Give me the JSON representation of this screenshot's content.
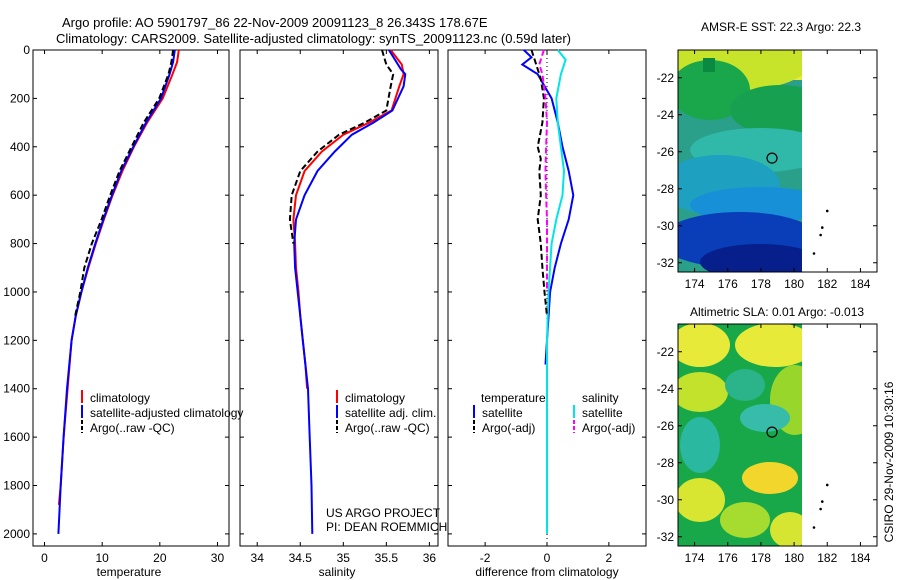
{
  "header": {
    "line1": "Argo profile: AO 5901797_86 22-Nov-2009 20091123_8 26.343S 178.67E",
    "line2": "Climatology: CARS2009. Satellite-adjusted climatology: synTS_20091123.nc (0.59d later)"
  },
  "side_label": "CSIRO 29-Nov-2009 10:30:16",
  "project_note": [
    "US ARGO PROJECT",
    "PI: DEAN ROEMMICH"
  ],
  "colors": {
    "clim": "#ff0000",
    "sat": "#0000ff",
    "argo": "#000000",
    "sat_diff_s": "#00e5e5",
    "argo_diff_s": "#ff00ff"
  },
  "chart_data": [
    {
      "id": "temperature",
      "type": "line",
      "xlabel": "temperature",
      "xlim": [
        -2,
        32
      ],
      "ylim": [
        2050,
        0
      ],
      "xticks": [
        0,
        10,
        20,
        30
      ],
      "yticks": [
        0,
        200,
        400,
        600,
        800,
        1000,
        1200,
        1400,
        1600,
        1800,
        2000
      ],
      "legend": [
        "climatology",
        "satellite-adjusted climatology",
        "Argo(..raw -QC)"
      ],
      "series": [
        {
          "key": "clim",
          "style": "solid",
          "points": [
            [
              23.3,
              0
            ],
            [
              23,
              50
            ],
            [
              22.2,
              100
            ],
            [
              20.5,
              200
            ],
            [
              17.8,
              300
            ],
            [
              15.5,
              400
            ],
            [
              13.5,
              500
            ],
            [
              11.8,
              600
            ],
            [
              10.3,
              700
            ],
            [
              8.9,
              800
            ],
            [
              7.6,
              900
            ],
            [
              6.4,
              1000
            ],
            [
              5.4,
              1100
            ],
            [
              4.7,
              1200
            ],
            [
              4,
              1400
            ],
            [
              3.3,
              1600
            ],
            [
              2.8,
              1800
            ],
            [
              2.5,
              1880
            ]
          ]
        },
        {
          "key": "sat",
          "style": "solid",
          "points": [
            [
              22.6,
              0
            ],
            [
              22.3,
              50
            ],
            [
              21.7,
              100
            ],
            [
              20.2,
              200
            ],
            [
              17.6,
              300
            ],
            [
              15.4,
              400
            ],
            [
              13.3,
              500
            ],
            [
              11.7,
              600
            ],
            [
              10.2,
              700
            ],
            [
              8.8,
              800
            ],
            [
              7.5,
              900
            ],
            [
              6.4,
              1000
            ],
            [
              5.4,
              1100
            ],
            [
              4.7,
              1200
            ],
            [
              3.9,
              1400
            ],
            [
              3.3,
              1600
            ],
            [
              2.8,
              1800
            ],
            [
              2.4,
              2000
            ]
          ]
        },
        {
          "key": "argo",
          "style": "dashed",
          "points": [
            [
              22.3,
              0
            ],
            [
              22,
              50
            ],
            [
              21.5,
              100
            ],
            [
              19.9,
              200
            ],
            [
              17.2,
              300
            ],
            [
              15.1,
              400
            ],
            [
              13,
              500
            ],
            [
              11.4,
              600
            ],
            [
              9.9,
              700
            ],
            [
              8.2,
              800
            ],
            [
              6.9,
              900
            ],
            [
              6.2,
              1000
            ],
            [
              5.3,
              1100
            ]
          ]
        }
      ]
    },
    {
      "id": "salinity",
      "type": "line",
      "xlabel": "salinity",
      "xlim": [
        33.8,
        36.1
      ],
      "ylim": [
        2050,
        0
      ],
      "xticks": [
        34,
        34.5,
        35,
        35.5,
        36
      ],
      "legend": [
        "climatology",
        "satellite adj. clim.",
        "Argo(..raw -QC)"
      ],
      "series": [
        {
          "key": "clim",
          "style": "solid",
          "points": [
            [
              35.55,
              0
            ],
            [
              35.68,
              60
            ],
            [
              35.7,
              100
            ],
            [
              35.65,
              150
            ],
            [
              35.56,
              250
            ],
            [
              35.3,
              300
            ],
            [
              35,
              350
            ],
            [
              34.75,
              420
            ],
            [
              34.55,
              500
            ],
            [
              34.45,
              600
            ],
            [
              34.42,
              700
            ],
            [
              34.44,
              800
            ],
            [
              34.45,
              900
            ],
            [
              34.48,
              1000
            ],
            [
              34.5,
              1100
            ],
            [
              34.53,
              1200
            ],
            [
              34.56,
              1300
            ],
            [
              34.58,
              1400
            ]
          ]
        },
        {
          "key": "sat",
          "style": "solid",
          "points": [
            [
              35.53,
              0
            ],
            [
              35.6,
              40
            ],
            [
              35.67,
              80
            ],
            [
              35.72,
              100
            ],
            [
              35.7,
              150
            ],
            [
              35.57,
              250
            ],
            [
              35.35,
              300
            ],
            [
              35.1,
              350
            ],
            [
              34.9,
              420
            ],
            [
              34.7,
              500
            ],
            [
              34.55,
              600
            ],
            [
              34.45,
              700
            ],
            [
              34.43,
              800
            ],
            [
              34.44,
              900
            ],
            [
              34.47,
              1000
            ],
            [
              34.5,
              1100
            ],
            [
              34.53,
              1200
            ],
            [
              34.56,
              1300
            ],
            [
              34.59,
              1400
            ],
            [
              34.61,
              1600
            ],
            [
              34.63,
              1800
            ],
            [
              34.64,
              2000
            ]
          ]
        },
        {
          "key": "argo",
          "style": "dashed",
          "points": [
            [
              35.45,
              0
            ],
            [
              35.5,
              60
            ],
            [
              35.58,
              100
            ],
            [
              35.55,
              150
            ],
            [
              35.5,
              250
            ],
            [
              35.25,
              300
            ],
            [
              34.95,
              350
            ],
            [
              34.7,
              420
            ],
            [
              34.5,
              500
            ],
            [
              34.4,
              600
            ],
            [
              34.38,
              700
            ],
            [
              34.42,
              800
            ]
          ]
        }
      ]
    },
    {
      "id": "difference",
      "type": "line",
      "xlabel": "difference from climatology",
      "xlim": [
        -3.2,
        3.2
      ],
      "ylim": [
        2050,
        0
      ],
      "xticks": [
        -2,
        0,
        2
      ],
      "legend_titles": [
        "temperature",
        "salinity"
      ],
      "legend_left": [
        "satellite",
        "Argo(-adj)"
      ],
      "legend_right": [
        "satellite",
        "Argo(-adj)"
      ],
      "series": [
        {
          "key": "sat",
          "style": "solid",
          "points": [
            [
              -0.75,
              0
            ],
            [
              -0.5,
              30
            ],
            [
              -0.8,
              60
            ],
            [
              -0.3,
              100
            ],
            [
              0.15,
              200
            ],
            [
              0.35,
              300
            ],
            [
              0.5,
              400
            ],
            [
              0.7,
              500
            ],
            [
              0.85,
              600
            ],
            [
              0.7,
              700
            ],
            [
              0.45,
              800
            ],
            [
              0.25,
              900
            ],
            [
              0.1,
              1000
            ],
            [
              0,
              1200
            ],
            [
              -0.05,
              1300
            ]
          ]
        },
        {
          "key": "sat_diff_s",
          "style": "solid",
          "points": [
            [
              0.35,
              0
            ],
            [
              0.6,
              40
            ],
            [
              0.45,
              100
            ],
            [
              0.3,
              200
            ],
            [
              0.35,
              300
            ],
            [
              0.45,
              400
            ],
            [
              0.55,
              500
            ],
            [
              0.5,
              600
            ],
            [
              0.3,
              700
            ],
            [
              0.15,
              800
            ],
            [
              0.05,
              1000
            ],
            [
              0,
              1200
            ],
            [
              0,
              1500
            ],
            [
              0,
              2000
            ]
          ]
        },
        {
          "key": "argo",
          "style": "dashed",
          "points": [
            [
              -0.5,
              0
            ],
            [
              -0.35,
              60
            ],
            [
              -0.2,
              120
            ],
            [
              -0.1,
              200
            ],
            [
              -0.15,
              300
            ],
            [
              -0.3,
              400
            ],
            [
              -0.2,
              450
            ],
            [
              -0.25,
              500
            ],
            [
              -0.2,
              600
            ],
            [
              -0.3,
              700
            ],
            [
              -0.2,
              800
            ],
            [
              -0.15,
              900
            ],
            [
              -0.08,
              1000
            ],
            [
              0,
              1100
            ]
          ]
        },
        {
          "key": "argo_diff_s",
          "style": "dashed",
          "points": [
            [
              -0.1,
              0
            ],
            [
              -0.25,
              60
            ],
            [
              -0.15,
              100
            ],
            [
              -0.05,
              200
            ],
            [
              0,
              300
            ],
            [
              -0.03,
              400
            ],
            [
              -0.05,
              500
            ],
            [
              -0.03,
              600
            ],
            [
              0,
              700
            ],
            [
              0,
              1000
            ]
          ]
        }
      ]
    },
    {
      "id": "sst_map",
      "type": "heatmap",
      "title": "AMSR-E SST: 22.3 Argo: 22.3",
      "xlim": [
        173,
        185
      ],
      "ylim": [
        -32.5,
        -20.5
      ],
      "xticks": [
        174,
        176,
        178,
        180,
        182,
        184
      ],
      "yticks": [
        -22,
        -24,
        -26,
        -28,
        -30,
        -32
      ],
      "marker": [
        178.67,
        -26.343
      ]
    },
    {
      "id": "sla_map",
      "type": "heatmap",
      "title": "Altimetric SLA: 0.01 Argo: -0.013",
      "xlim": [
        173,
        185
      ],
      "ylim": [
        -32.5,
        -20.5
      ],
      "xticks": [
        174,
        176,
        178,
        180,
        182,
        184
      ],
      "yticks": [
        -22,
        -24,
        -26,
        -28,
        -30,
        -32
      ],
      "marker": [
        178.67,
        -26.343
      ]
    }
  ]
}
